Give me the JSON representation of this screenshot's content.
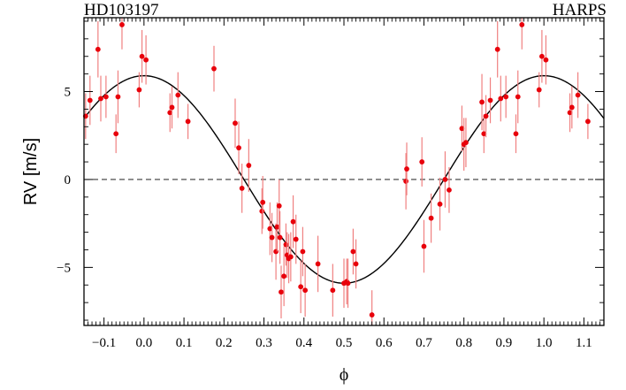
{
  "chart_data": {
    "type": "scatter",
    "title_left": "HD103197",
    "title_right": "HARPS",
    "xlabel": "ϕ",
    "ylabel": "RV [m/s]",
    "xlim": [
      -0.15,
      1.15
    ],
    "ylim": [
      -8.3,
      9.2
    ],
    "x_ticks": [
      -0.1,
      0.0,
      0.1,
      0.2,
      0.3,
      0.4,
      0.5,
      0.6,
      0.7,
      0.8,
      0.9,
      1.0,
      1.1
    ],
    "x_tick_labels": [
      "−0.1",
      "0.0",
      "0.1",
      "0.2",
      "0.3",
      "0.4",
      "0.5",
      "0.6",
      "0.7",
      "0.8",
      "0.9",
      "1.0",
      "1.1"
    ],
    "y_ticks": [
      -5,
      0,
      5
    ],
    "y_tick_labels": [
      "−5",
      "0",
      "5"
    ],
    "zero_line": "dashed",
    "model": {
      "type": "sinusoid",
      "amplitude": 5.9,
      "peak_phase": 0.0
    },
    "points": [
      {
        "x": -0.146,
        "y": 3.6,
        "err": 1.3
      },
      {
        "x": -0.135,
        "y": 4.5,
        "err": 1.4
      },
      {
        "x": -0.115,
        "y": 7.4,
        "err": 1.6
      },
      {
        "x": -0.108,
        "y": 4.6,
        "err": 1.3
      },
      {
        "x": -0.095,
        "y": 4.7,
        "err": 1.2
      },
      {
        "x": -0.07,
        "y": 2.6,
        "err": 1.1
      },
      {
        "x": -0.065,
        "y": 4.7,
        "err": 1.5
      },
      {
        "x": -0.055,
        "y": 8.8,
        "err": 1.4
      },
      {
        "x": -0.012,
        "y": 5.1,
        "err": 1.0
      },
      {
        "x": -0.005,
        "y": 7.0,
        "err": 1.5
      },
      {
        "x": 0.005,
        "y": 6.8,
        "err": 1.4
      },
      {
        "x": 0.065,
        "y": 3.8,
        "err": 1.1
      },
      {
        "x": 0.07,
        "y": 4.1,
        "err": 1.2
      },
      {
        "x": 0.085,
        "y": 4.8,
        "err": 1.3
      },
      {
        "x": 0.11,
        "y": 3.3,
        "err": 1.0
      },
      {
        "x": 0.175,
        "y": 6.3,
        "err": 1.3
      },
      {
        "x": 0.228,
        "y": 3.2,
        "err": 1.4
      },
      {
        "x": 0.237,
        "y": 1.8,
        "err": 1.5
      },
      {
        "x": 0.245,
        "y": -0.5,
        "err": 1.4
      },
      {
        "x": 0.262,
        "y": 0.8,
        "err": 1.5
      },
      {
        "x": 0.295,
        "y": -1.8,
        "err": 1.3
      },
      {
        "x": 0.297,
        "y": -1.3,
        "err": 1.5
      },
      {
        "x": 0.315,
        "y": -2.8,
        "err": 1.5
      },
      {
        "x": 0.32,
        "y": -3.3,
        "err": 1.4
      },
      {
        "x": 0.33,
        "y": -4.1,
        "err": 1.6
      },
      {
        "x": 0.333,
        "y": -2.7,
        "err": 1.4
      },
      {
        "x": 0.338,
        "y": -1.5,
        "err": 1.5
      },
      {
        "x": 0.34,
        "y": -3.3,
        "err": 1.5
      },
      {
        "x": 0.343,
        "y": -6.4,
        "err": 1.5
      },
      {
        "x": 0.35,
        "y": -5.5,
        "err": 1.7
      },
      {
        "x": 0.355,
        "y": -3.7,
        "err": 1.2
      },
      {
        "x": 0.358,
        "y": -4.3,
        "err": 1.3
      },
      {
        "x": 0.362,
        "y": -4.5,
        "err": 1.4
      },
      {
        "x": 0.367,
        "y": -4.4,
        "err": 1.4
      },
      {
        "x": 0.373,
        "y": -2.4,
        "err": 1.5
      },
      {
        "x": 0.38,
        "y": -3.4,
        "err": 1.4
      },
      {
        "x": 0.392,
        "y": -6.1,
        "err": 1.5
      },
      {
        "x": 0.397,
        "y": -4.1,
        "err": 1.4
      },
      {
        "x": 0.403,
        "y": -6.3,
        "err": 1.5
      },
      {
        "x": 0.435,
        "y": -4.8,
        "err": 1.6
      },
      {
        "x": 0.472,
        "y": -6.3,
        "err": 1.5
      },
      {
        "x": 0.5,
        "y": -5.9,
        "err": 1.4
      },
      {
        "x": 0.507,
        "y": -5.8,
        "err": 1.3
      },
      {
        "x": 0.51,
        "y": -5.9,
        "err": 1.4
      },
      {
        "x": 0.523,
        "y": -4.1,
        "err": 1.3
      },
      {
        "x": 0.53,
        "y": -4.8,
        "err": 1.4
      },
      {
        "x": 0.57,
        "y": -7.7,
        "err": 1.4
      },
      {
        "x": 0.655,
        "y": -0.1,
        "err": 1.6
      },
      {
        "x": 0.657,
        "y": 0.6,
        "err": 1.5
      },
      {
        "x": 0.695,
        "y": 1.0,
        "err": 1.4
      },
      {
        "x": 0.7,
        "y": -3.8,
        "err": 1.5
      },
      {
        "x": 0.718,
        "y": -2.2,
        "err": 1.4
      },
      {
        "x": 0.74,
        "y": -1.4,
        "err": 1.5
      },
      {
        "x": 0.753,
        "y": 0.0,
        "err": 1.6
      },
      {
        "x": 0.763,
        "y": -0.6,
        "err": 1.3
      },
      {
        "x": 0.795,
        "y": 2.9,
        "err": 1.3
      },
      {
        "x": 0.8,
        "y": 2.0,
        "err": 1.5
      },
      {
        "x": 0.805,
        "y": 2.1,
        "err": 1.4
      },
      {
        "x": 0.845,
        "y": 4.4,
        "err": 1.6
      },
      {
        "x": 0.85,
        "y": 2.6,
        "err": 1.1
      },
      {
        "x": 0.855,
        "y": 3.6,
        "err": 1.2
      },
      {
        "x": 0.866,
        "y": 4.5,
        "err": 1.3
      },
      {
        "x": 0.884,
        "y": 7.4,
        "err": 1.6
      },
      {
        "x": 0.892,
        "y": 4.6,
        "err": 1.3
      },
      {
        "x": 0.905,
        "y": 4.7,
        "err": 1.2
      },
      {
        "x": 0.93,
        "y": 2.6,
        "err": 1.1
      },
      {
        "x": 0.935,
        "y": 4.7,
        "err": 1.5
      },
      {
        "x": 0.945,
        "y": 8.8,
        "err": 1.4
      },
      {
        "x": 0.988,
        "y": 5.1,
        "err": 1.0
      },
      {
        "x": 0.995,
        "y": 7.0,
        "err": 1.5
      },
      {
        "x": 1.005,
        "y": 6.8,
        "err": 1.4
      },
      {
        "x": 1.065,
        "y": 3.8,
        "err": 1.1
      },
      {
        "x": 1.07,
        "y": 4.1,
        "err": 1.2
      },
      {
        "x": 1.085,
        "y": 4.8,
        "err": 1.3
      },
      {
        "x": 1.11,
        "y": 3.3,
        "err": 1.0
      }
    ],
    "colors": {
      "points": "#e8000b",
      "errorbars": "#f08080",
      "model": "#000000",
      "axes": "#000000"
    },
    "grid": false
  }
}
